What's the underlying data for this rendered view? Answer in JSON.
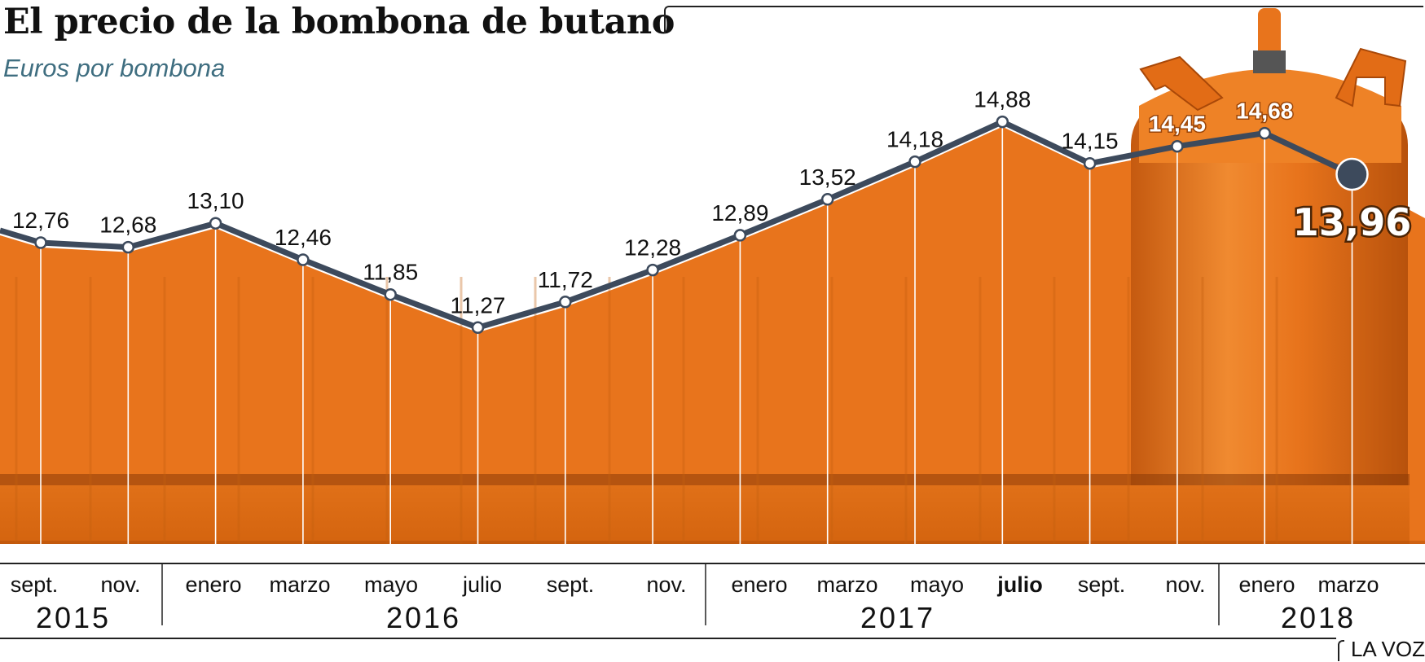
{
  "header": {
    "title": "El precio de la bombona de butano",
    "subtitle": "Euros por bombona"
  },
  "credit": "LA VOZ",
  "colors": {
    "line": "#3d4a5c",
    "cylinder": "#e8741c",
    "cylinder_dark": "#b8520c",
    "cylinder_light": "#f5a050",
    "gridline": "#ffffff"
  },
  "chart_data": {
    "type": "line",
    "title": "El precio de la bombona de butano",
    "ylabel": "Euros por bombona",
    "xlabel": "",
    "ylim": [
      0,
      16
    ],
    "categories": [
      "sept.",
      "nov.",
      "enero",
      "marzo",
      "mayo",
      "julio",
      "sept.",
      "nov.",
      "enero",
      "marzo",
      "mayo",
      "julio",
      "sept.",
      "nov.",
      "enero",
      "marzo"
    ],
    "values": [
      12.76,
      12.68,
      13.1,
      12.46,
      11.85,
      11.27,
      11.72,
      12.28,
      12.89,
      13.52,
      14.18,
      14.88,
      14.15,
      14.45,
      14.68,
      13.96
    ],
    "value_labels": [
      "12,76",
      "12,68",
      "13,10",
      "12,46",
      "11,85",
      "11,27",
      "11,72",
      "12,28",
      "12,89",
      "13,52",
      "14,18",
      "14,88",
      "14,15",
      "14,45",
      "14,68",
      "13,96"
    ],
    "highlight_labels": [
      13,
      14
    ],
    "highlight_last": true,
    "bold_month_index": 11,
    "years": [
      {
        "label": "2015",
        "from": 0,
        "to": 1
      },
      {
        "label": "2016",
        "from": 2,
        "to": 7
      },
      {
        "label": "2017",
        "from": 8,
        "to": 13
      },
      {
        "label": "2018",
        "from": 14,
        "to": 15
      }
    ]
  }
}
